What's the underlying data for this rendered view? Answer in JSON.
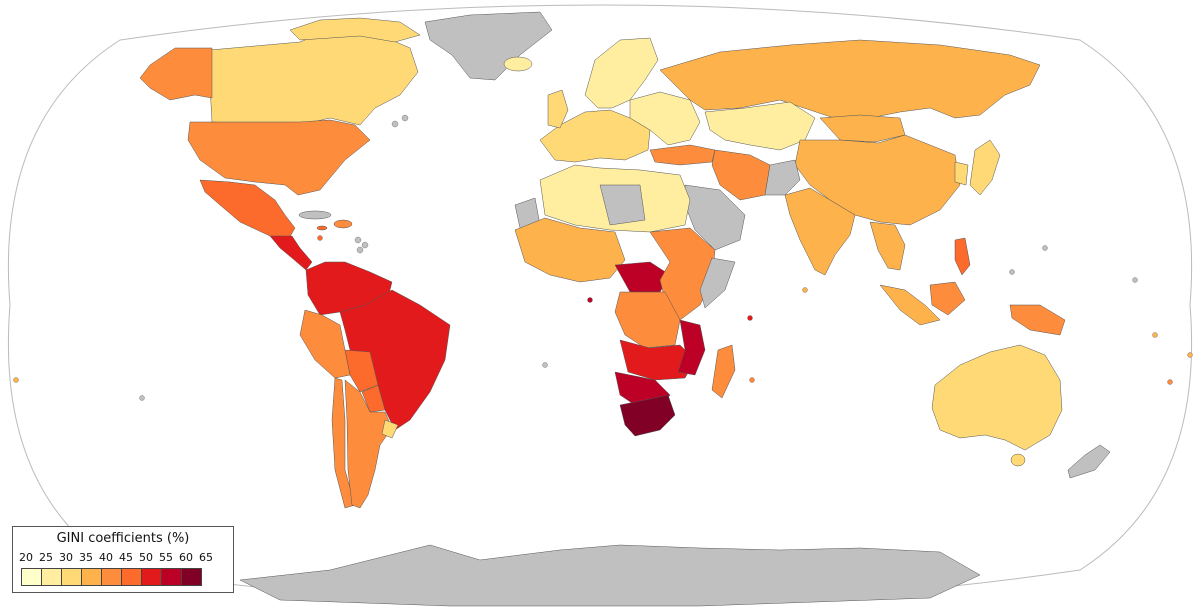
{
  "legend": {
    "title": "GINI coefficients (%)",
    "ticks": [
      "20",
      "25",
      "30",
      "35",
      "40",
      "45",
      "50",
      "55",
      "60",
      "65"
    ],
    "bins": [
      {
        "range": "20-25",
        "color": "#ffffcc"
      },
      {
        "range": "25-30",
        "color": "#ffeda0"
      },
      {
        "range": "30-35",
        "color": "#fed976"
      },
      {
        "range": "35-40",
        "color": "#feb24c"
      },
      {
        "range": "40-45",
        "color": "#fd8d3c"
      },
      {
        "range": "45-50",
        "color": "#fc6b2b"
      },
      {
        "range": "50-55",
        "color": "#e31a1c"
      },
      {
        "range": "55-60",
        "color": "#bd0026"
      },
      {
        "range": "60-65",
        "color": "#800026"
      }
    ]
  },
  "colors": {
    "no_data": "#c0c0c0",
    "ocean": "#ffffff",
    "border": "#555555"
  }
}
